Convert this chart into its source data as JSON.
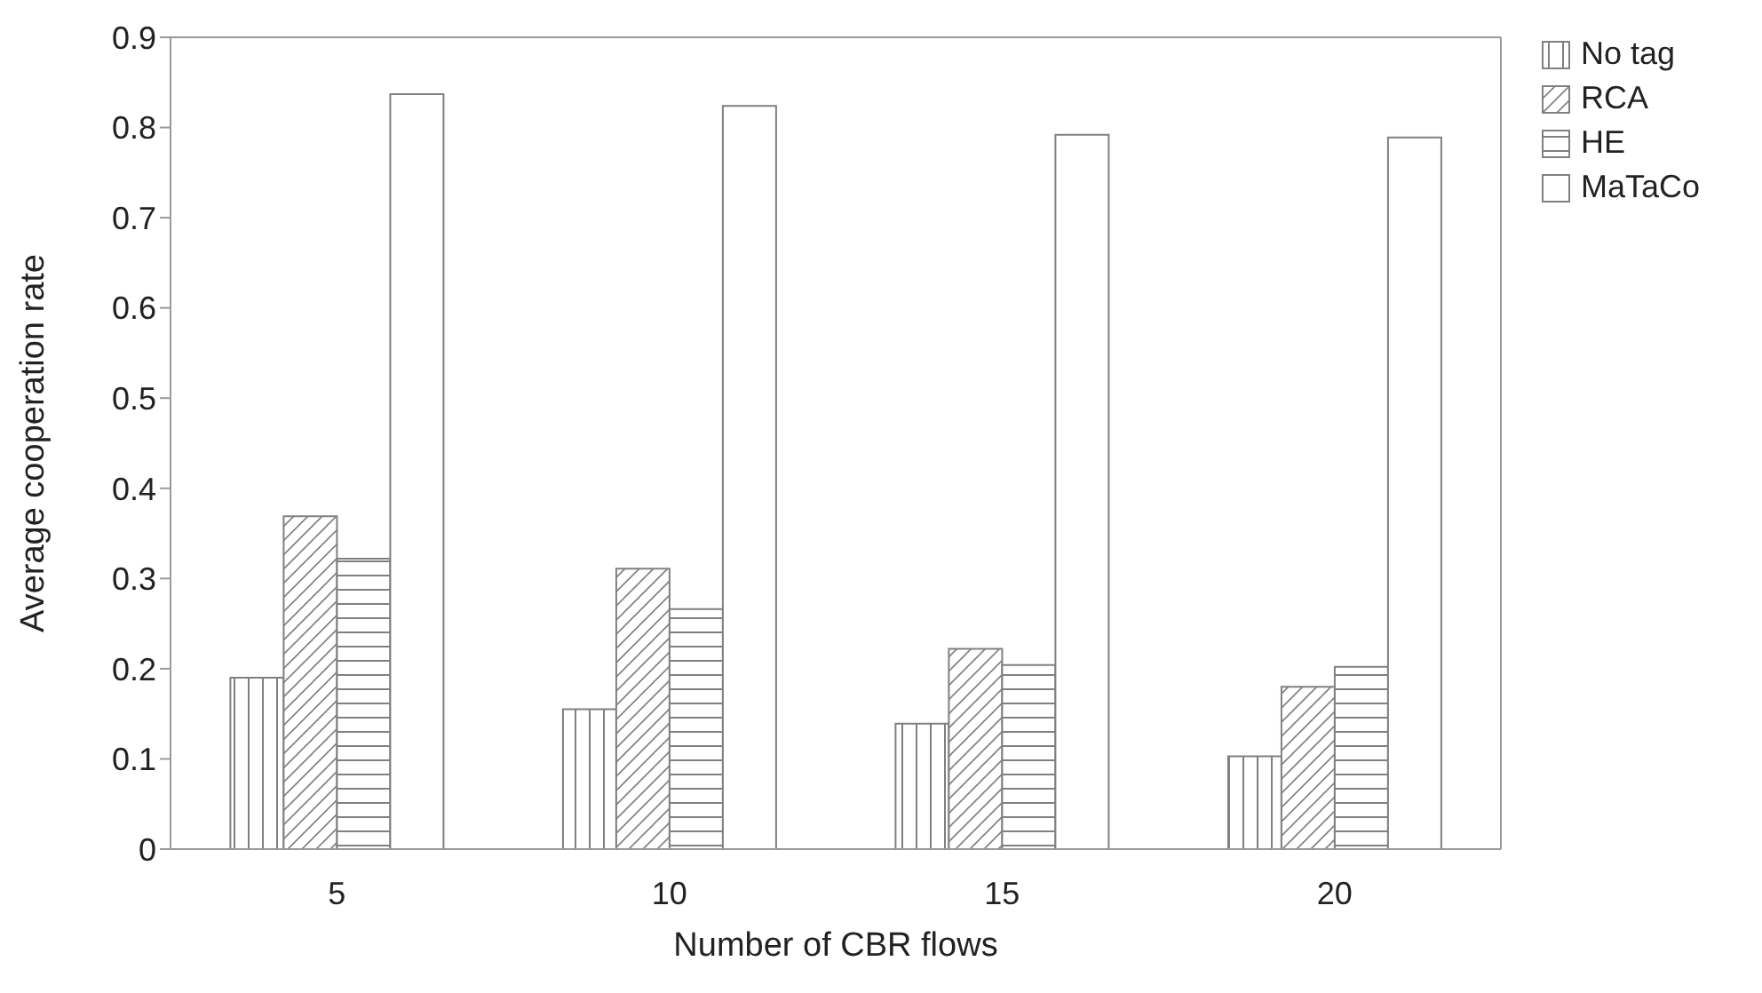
{
  "chart_data": {
    "type": "bar",
    "xlabel": "Number of CBR flows",
    "ylabel": "Average cooperation rate",
    "categories": [
      "5",
      "10",
      "15",
      "20"
    ],
    "series": [
      {
        "name": "No tag",
        "color": "#808080",
        "values": [
          0.19,
          0.155,
          0.139,
          0.103
        ]
      },
      {
        "name": "RCA",
        "color": "#808080",
        "values": [
          0.369,
          0.311,
          0.222,
          0.18
        ]
      },
      {
        "name": "HE",
        "color": "#808080",
        "values": [
          0.322,
          0.266,
          0.204,
          0.202
        ]
      },
      {
        "name": "MaTaCo",
        "color": "#808080",
        "values": [
          0.837,
          0.824,
          0.792,
          0.789
        ]
      }
    ],
    "ylim": [
      0,
      0.9
    ],
    "yticks": [
      0,
      0.1,
      0.2,
      0.3,
      0.4,
      0.5,
      0.6,
      0.7,
      0.8,
      0.9
    ],
    "grid": false,
    "legend": "top right"
  }
}
